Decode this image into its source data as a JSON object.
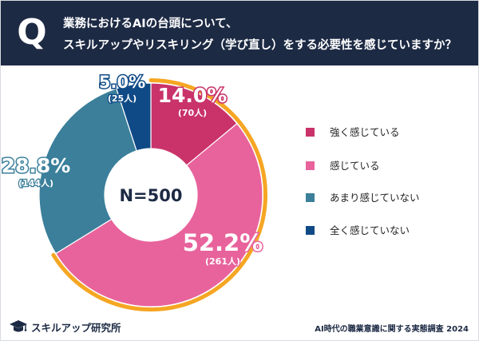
{
  "header": {
    "q_mark": "Q",
    "question_line1": "業務におけるAIの台頭について、",
    "question_line2": "スキルアップやリスキリング（学び直し）をする必要性を感じていますか？"
  },
  "chart_data": {
    "type": "pie",
    "center_label": "N=500",
    "slices": [
      {
        "label": "強く感じている",
        "percent": 14.0,
        "percent_text": "14.0%",
        "count_text": "(70人)",
        "color": "#c9336a"
      },
      {
        "label": "感じている",
        "percent": 52.2,
        "percent_text": "52.2%",
        "count_text": "(261人)",
        "color": "#e8639c"
      },
      {
        "label": "あまり感じていない",
        "percent": 28.8,
        "percent_text": "28.8%",
        "count_text": "(144人)",
        "color": "#3b7f9b"
      },
      {
        "label": "全く感じていない",
        "percent": 5.0,
        "percent_text": "5.0%",
        "count_text": "(25人)",
        "color": "#0f4a86"
      }
    ],
    "highlight_color": "#f5a623",
    "legend_placement": "right"
  },
  "footer": {
    "logo_text": "スキルアップ研究所",
    "source_text": "AI時代の職業意識に関する実態調査 2024"
  }
}
